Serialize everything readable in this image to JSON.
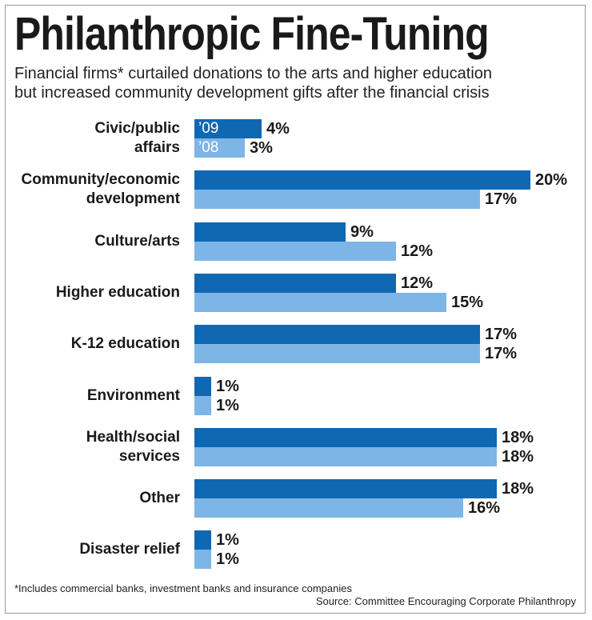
{
  "chart_data": {
    "type": "bar",
    "orientation": "horizontal",
    "title": "Philanthropic Fine-Tuning",
    "subtitle_lines": [
      "Financial firms* curtailed donations to the arts and higher education",
      "but increased community development gifts after the financial crisis"
    ],
    "categories": [
      [
        "Civic/public",
        "affairs"
      ],
      [
        "Community/economic",
        "development"
      ],
      [
        "Culture/arts"
      ],
      [
        "Higher education"
      ],
      [
        "K-12 education"
      ],
      [
        "Environment"
      ],
      [
        "Health/social",
        "services"
      ],
      [
        "Other"
      ],
      [
        "Disaster relief"
      ]
    ],
    "series": [
      {
        "name": "’09",
        "color": "#1068b2",
        "values": [
          4,
          20,
          9,
          12,
          17,
          1,
          18,
          18,
          1
        ]
      },
      {
        "name": "’08",
        "color": "#7db5e6",
        "values": [
          3,
          17,
          12,
          15,
          17,
          1,
          18,
          16,
          1
        ]
      }
    ],
    "value_suffix": "%",
    "xlim": [
      0,
      20
    ],
    "legend_placement": "inside first category bars",
    "grid": false,
    "footnote": "*Includes commercial banks, investment banks and insurance companies",
    "source": "Source: Committee Encouraging Corporate Philanthropy"
  }
}
